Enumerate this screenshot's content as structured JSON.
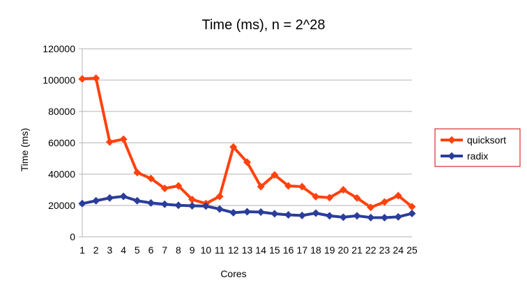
{
  "chart_data": {
    "type": "line",
    "title": "Time (ms), n = 2^28",
    "xlabel": "Cores",
    "ylabel": "Time (ms)",
    "categories": [
      1,
      2,
      3,
      4,
      5,
      6,
      7,
      8,
      9,
      10,
      11,
      12,
      13,
      14,
      15,
      16,
      17,
      18,
      19,
      20,
      21,
      22,
      23,
      24,
      25
    ],
    "ylim": [
      0,
      120000
    ],
    "yticks": [
      0,
      20000,
      40000,
      60000,
      80000,
      100000,
      120000
    ],
    "grid": true,
    "legend_position": "right",
    "series": [
      {
        "name": "quicksort",
        "color": "#ff420e",
        "values": [
          100800,
          101200,
          60500,
          62300,
          41000,
          37200,
          30900,
          32500,
          23800,
          21200,
          25800,
          57300,
          47600,
          32000,
          39500,
          32500,
          32000,
          25600,
          25000,
          30000,
          24800,
          18800,
          22200,
          26300,
          19200
        ]
      },
      {
        "name": "radix",
        "color": "#2a3d9b",
        "values": [
          21200,
          23000,
          24800,
          25800,
          23000,
          21600,
          20800,
          20100,
          19800,
          19600,
          17700,
          15400,
          16000,
          15800,
          14700,
          14000,
          13600,
          15100,
          13400,
          12500,
          13400,
          12300,
          12200,
          12700,
          14900
        ]
      }
    ]
  }
}
